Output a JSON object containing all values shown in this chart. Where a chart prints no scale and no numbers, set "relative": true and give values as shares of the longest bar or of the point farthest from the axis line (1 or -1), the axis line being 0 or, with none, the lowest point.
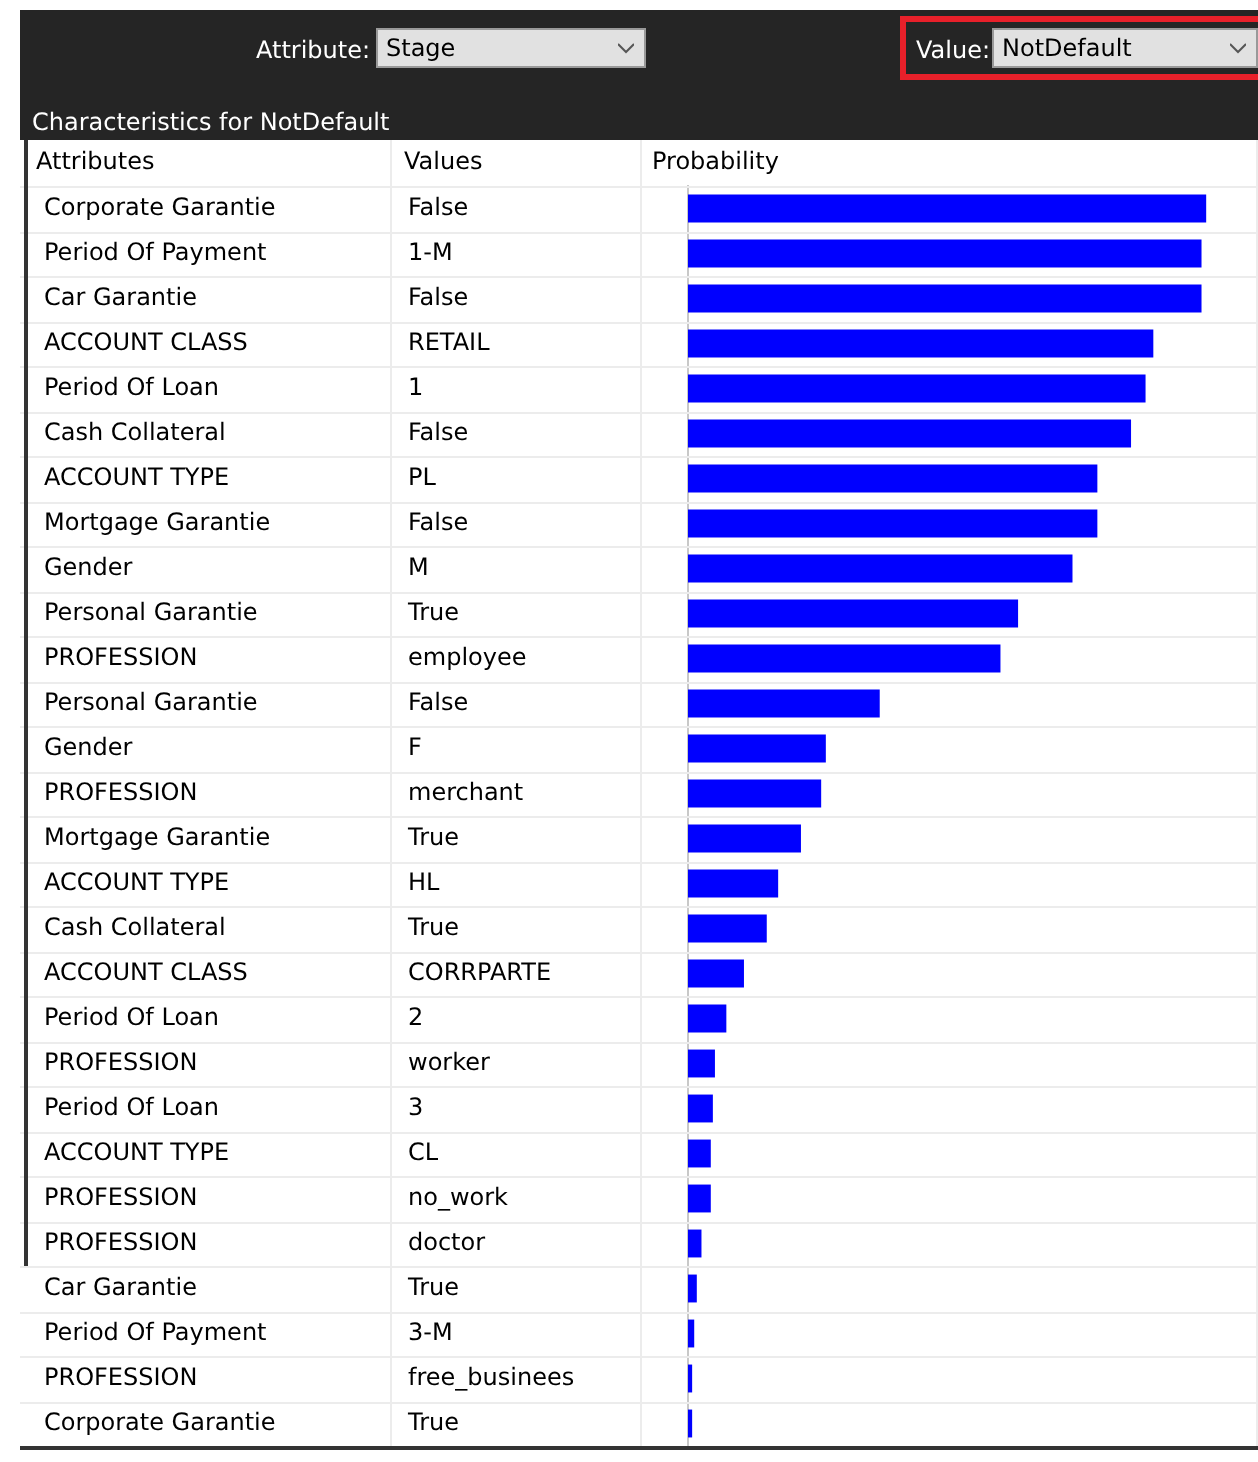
{
  "chart_data": {
    "type": "bar",
    "orientation": "horizontal",
    "relative": true,
    "title": "Characteristics for NotDefault",
    "ylabel": "Attributes",
    "y2label": "Values",
    "xlabel": "Probability",
    "annotations": [
      "Attribute:",
      "Stage",
      "Value:",
      "NotDefault"
    ],
    "categories": [
      "Corporate Garantie",
      "Period Of Payment",
      "Car Garantie",
      "ACCOUNT CLASS",
      "Period Of Loan",
      "Cash Collateral",
      "ACCOUNT TYPE",
      "Mortgage Garantie",
      "Gender",
      "Personal Garantie",
      "PROFESSION",
      "Personal Garantie",
      "Gender",
      "PROFESSION",
      "Mortgage Garantie",
      "ACCOUNT TYPE",
      "Cash Collateral",
      "ACCOUNT CLASS",
      "Period Of Loan",
      "PROFESSION",
      "Period Of Loan",
      "ACCOUNT TYPE",
      "PROFESSION",
      "PROFESSION",
      "Car Garantie",
      "Period Of Payment",
      "PROFESSION",
      "Corporate Garantie"
    ],
    "y2_categories": [
      "False",
      "1-M",
      "False",
      "RETAIL",
      "1",
      "False",
      "PL",
      "False",
      "M",
      "True",
      "employee",
      "False",
      "F",
      "merchant",
      "True",
      "HL",
      "True",
      "CORRPARTE",
      "2",
      "worker",
      "3",
      "CL",
      "no_work",
      "doctor",
      "True",
      "3-M",
      "free_businees",
      "True"
    ],
    "values": [
      1,
      0.991,
      0.991,
      0.898,
      0.883,
      0.855,
      0.79,
      0.79,
      0.742,
      0.637,
      0.603,
      0.37,
      0.266,
      0.257,
      0.218,
      0.174,
      0.152,
      0.108,
      0.074,
      0.052,
      0.048,
      0.044,
      0.044,
      0.026,
      0.017,
      0.012,
      0.008,
      0.008
    ],
    "color": "#0000ff"
  }
}
